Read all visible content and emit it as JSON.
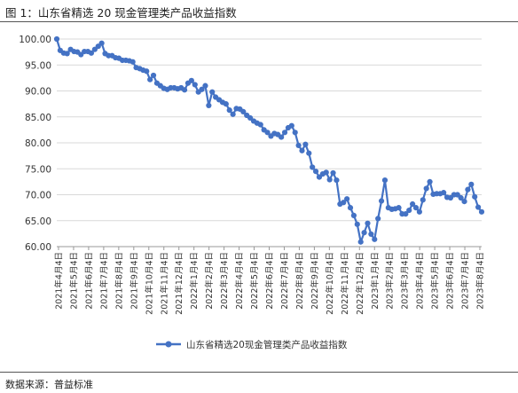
{
  "header": {
    "title": "图 1：山东省精选 20 现金管理类产品收益指数"
  },
  "footer": {
    "source": "数据来源：普益标准"
  },
  "colors": {
    "series": "#4472C4",
    "grid": "#d9d9d9",
    "axis": "#999999"
  },
  "chart_data": {
    "type": "line",
    "title": "",
    "xlabel": "",
    "ylabel": "",
    "ylim": [
      60,
      100
    ],
    "yticks": [
      "60.00",
      "65.00",
      "70.00",
      "75.00",
      "80.00",
      "85.00",
      "90.00",
      "95.00",
      "100.00"
    ],
    "grid": "horizontal",
    "legend": "bottom-center",
    "markers": true,
    "x_tick_labels": [
      "2021年4月4日",
      "2021年5月4日",
      "2021年6月4日",
      "2021年7月4日",
      "2021年8月4日",
      "2021年9月4日",
      "2021年10月4日",
      "2021年11月4日",
      "2021年12月4日",
      "2022年1月4日",
      "2022年2月4日",
      "2022年3月4日",
      "2022年4月4日",
      "2022年5月4日",
      "2022年6月4日",
      "2022年7月4日",
      "2022年8月4日",
      "2022年9月4日",
      "2022年10月4日",
      "2022年11月4日",
      "2022年12月4日",
      "2023年1月4日",
      "2023年2月4日",
      "2023年3月4日",
      "2023年4月4日",
      "2023年5月4日",
      "2023年6月4日",
      "2023年7月4日",
      "2023年8月4日"
    ],
    "series": [
      {
        "name": "山东省精选20现金管理类产品收益指数",
        "values": [
          100.0,
          97.8,
          97.3,
          97.2,
          98.0,
          97.6,
          97.5,
          97.0,
          97.6,
          97.6,
          97.3,
          98.0,
          98.6,
          99.2,
          97.2,
          96.8,
          96.8,
          96.4,
          96.3,
          95.9,
          95.9,
          95.8,
          95.6,
          94.5,
          94.3,
          94.0,
          93.8,
          92.2,
          93.0,
          91.5,
          91.0,
          90.5,
          90.3,
          90.6,
          90.6,
          90.4,
          90.6,
          90.2,
          91.5,
          92.0,
          91.2,
          89.8,
          90.3,
          91.0,
          87.2,
          89.8,
          88.8,
          88.3,
          87.8,
          87.5,
          86.3,
          85.5,
          86.6,
          86.5,
          86.0,
          85.3,
          84.8,
          84.2,
          83.8,
          83.5,
          82.5,
          82.0,
          81.3,
          81.8,
          81.6,
          81.1,
          82.0,
          82.9,
          83.3,
          82.0,
          79.5,
          78.5,
          79.7,
          78.0,
          75.3,
          74.5,
          73.4,
          74.0,
          74.3,
          72.9,
          74.2,
          72.8,
          68.2,
          68.5,
          69.2,
          67.5,
          66.0,
          64.3,
          60.9,
          62.7,
          64.5,
          62.4,
          61.4,
          65.4,
          68.8,
          72.8,
          67.5,
          67.2,
          67.3,
          67.5,
          66.3,
          66.3,
          67.0,
          68.2,
          67.5,
          66.7,
          69.0,
          71.2,
          72.5,
          70.1,
          70.2,
          70.2,
          70.4,
          69.5,
          69.4,
          70.0,
          70.0,
          69.4,
          68.7,
          71.0,
          72.0,
          69.6,
          67.6,
          66.7
        ]
      }
    ]
  }
}
